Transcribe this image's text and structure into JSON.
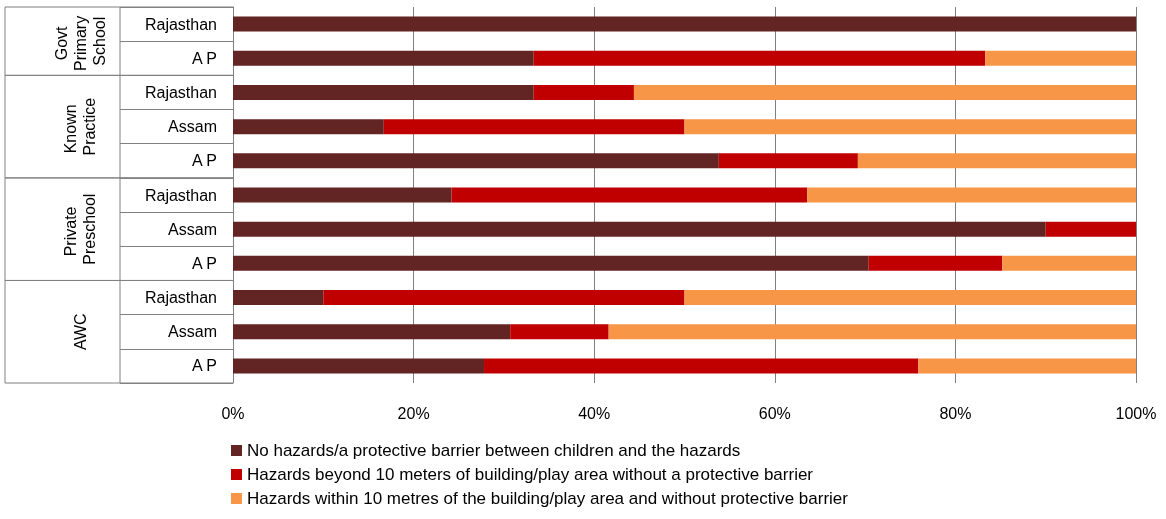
{
  "chart_data": {
    "type": "bar",
    "orientation": "horizontal",
    "stacked": true,
    "categories": [
      "Rajasthan",
      "A P",
      "Rajasthan",
      "Assam",
      "A P",
      "Rajasthan",
      "Assam",
      "A P",
      "Rajasthan",
      "Assam",
      "A P"
    ],
    "series": [
      {
        "name": "No hazards/a protective barrier between children and the hazards",
        "color": "#632523",
        "values": [
          100,
          33.3,
          33.3,
          16.7,
          53.8,
          24.2,
          90,
          70.4,
          10,
          30.7,
          27.8
        ]
      },
      {
        "name": "Hazards beyond 10 meters of building/play area without a protective barrier",
        "color": "#c00000",
        "values": [
          0,
          50,
          11.1,
          33.3,
          15.4,
          39.4,
          10,
          14.8,
          40,
          10.9,
          48.1
        ]
      },
      {
        "name": "Hazards within 10 metres of the building/play area and without protective barrier",
        "color": "#f79646",
        "values": [
          0,
          16.7,
          55.6,
          50,
          30.8,
          36.4,
          0,
          14.8,
          50,
          58.4,
          24.1
        ]
      }
    ],
    "xlim": [
      0,
      100
    ],
    "xticks": [
      {
        "value": 0,
        "label": "0%"
      },
      {
        "value": 20,
        "label": "20%"
      },
      {
        "value": 40,
        "label": "40%"
      },
      {
        "value": 60,
        "label": "60%"
      },
      {
        "value": 80,
        "label": "80%"
      },
      {
        "value": 100,
        "label": "100%"
      }
    ],
    "grid": "x",
    "legend": "bottom",
    "annotations": [
      "Govt Primary School",
      "Known Practice",
      "Private Preschool",
      "AWC"
    ]
  }
}
